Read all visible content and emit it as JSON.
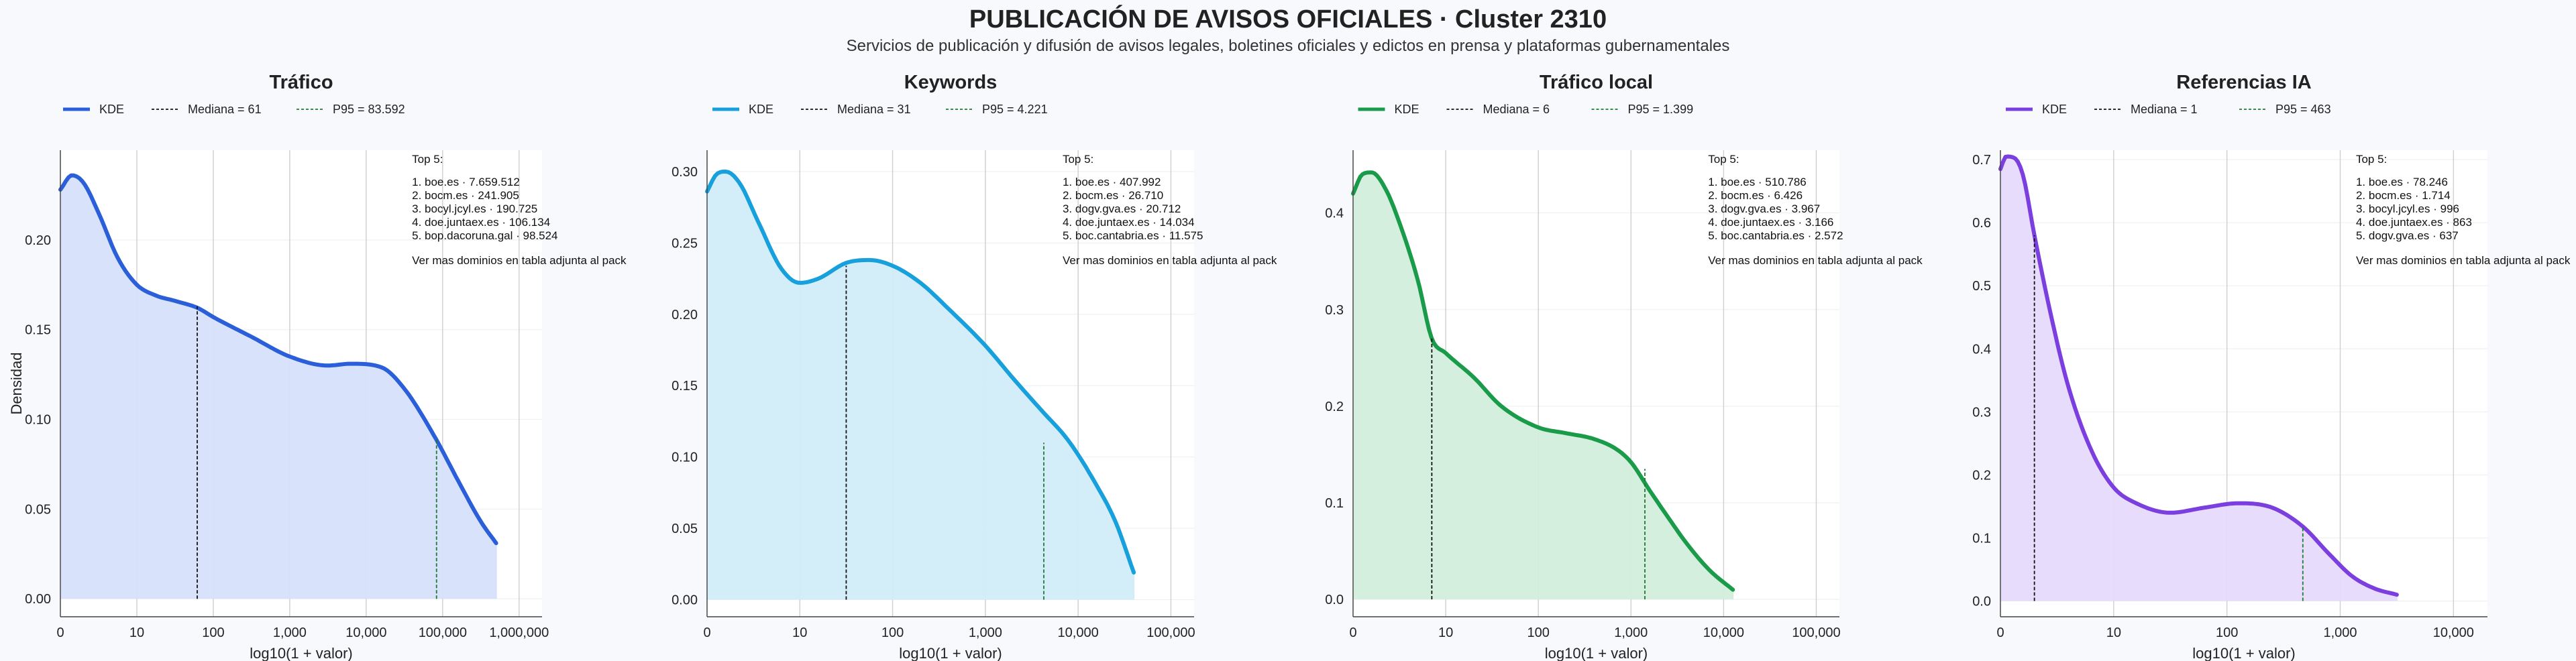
{
  "title": "PUBLICACIÓN DE AVISOS OFICIALES · Cluster 2310",
  "subtitle": "Servicios de publicación y difusión de avisos legales, boletines oficiales y edictos en prensa y plataformas gubernamentales",
  "colors": {
    "background": "#f7f9fc",
    "plot_bg": "#ffffff",
    "grid": "#cfcfcf"
  },
  "chart_data": [
    {
      "type": "area",
      "title": "Tráfico",
      "xlabel": "log10(1 + valor)",
      "ylabel": "Densidad",
      "x_scale": "log10(1+x)",
      "xlim": [
        0,
        6.3
      ],
      "ylim": [
        -0.01,
        0.25
      ],
      "xticks": [
        0,
        1,
        2,
        3,
        4,
        5,
        6
      ],
      "xtick_labels": [
        "0",
        "10",
        "100",
        "1,000",
        "10,000",
        "100,000",
        "1,000,000"
      ],
      "yticks": [
        0,
        0.05,
        0.1,
        0.15,
        0.2
      ],
      "ytick_labels": [
        "0.00",
        "0.05",
        "0.10",
        "0.15",
        "0.20"
      ],
      "grid": true,
      "color": "#2b5fd9",
      "fill": "#d6e0fb",
      "legend": {
        "kde": "KDE",
        "median": "Mediana = 61",
        "p95": "P95 = 83.592"
      },
      "kde": {
        "x": [
          0,
          0.15,
          0.3,
          0.5,
          0.75,
          1.0,
          1.25,
          1.5,
          1.8,
          2.0,
          2.5,
          3.0,
          3.5,
          3.8,
          4.2,
          4.5,
          4.9,
          5.2,
          5.5,
          5.7
        ],
        "y": [
          0.228,
          0.236,
          0.232,
          0.215,
          0.19,
          0.175,
          0.169,
          0.166,
          0.162,
          0.157,
          0.146,
          0.135,
          0.13,
          0.131,
          0.129,
          0.117,
          0.09,
          0.066,
          0.043,
          0.031
        ]
      },
      "median_x": 1.79,
      "median_y": 0.163,
      "p95_x": 4.92,
      "p95_y": 0.089,
      "top5": [
        "Top 5:",
        "1. boe.es · 7.659.512",
        "2. bocm.es · 241.905",
        "3. bocyl.jcyl.es · 190.725",
        "4. doe.juntaex.es · 106.134",
        "5. bop.dacoruna.gal · 98.524"
      ],
      "note": "Ver mas dominios en tabla adjunta al pack"
    },
    {
      "type": "area",
      "title": "Keywords",
      "xlabel": "log10(1 + valor)",
      "x_scale": "log10(1+x)",
      "xlim": [
        0,
        5.25
      ],
      "ylim": [
        -0.012,
        0.315
      ],
      "xticks": [
        0,
        1,
        2,
        3,
        4,
        5
      ],
      "xtick_labels": [
        "0",
        "10",
        "100",
        "1,000",
        "10,000",
        "100,000"
      ],
      "yticks": [
        0,
        0.05,
        0.1,
        0.15,
        0.2,
        0.25,
        0.3
      ],
      "ytick_labels": [
        "0.00",
        "0.05",
        "0.10",
        "0.15",
        "0.20",
        "0.25",
        "0.30"
      ],
      "grid": true,
      "color": "#17a0dc",
      "fill": "#d1ecf9",
      "legend": {
        "kde": "KDE",
        "median": "Mediana = 31",
        "p95": "P95 = 4.221"
      },
      "kde": {
        "x": [
          0,
          0.1,
          0.2,
          0.35,
          0.55,
          0.8,
          1.0,
          1.2,
          1.5,
          1.75,
          2.0,
          2.3,
          2.6,
          3.0,
          3.3,
          3.6,
          3.9,
          4.2,
          4.4,
          4.6
        ],
        "y": [
          0.286,
          0.298,
          0.3,
          0.292,
          0.265,
          0.232,
          0.222,
          0.225,
          0.236,
          0.238,
          0.234,
          0.222,
          0.204,
          0.178,
          0.155,
          0.133,
          0.111,
          0.08,
          0.055,
          0.019
        ]
      },
      "median_x": 1.5,
      "median_y": 0.234,
      "p95_x": 3.63,
      "p95_y": 0.11,
      "top5": [
        "Top 5:",
        "1. boe.es · 407.992",
        "2. bocm.es · 26.710",
        "3. dogv.gva.es · 20.712",
        "4. doe.juntaex.es · 14.034",
        "5. boc.cantabria.es · 11.575"
      ],
      "note": "Ver mas dominios en tabla adjunta al pack"
    },
    {
      "type": "area",
      "title": "Tráfico local",
      "xlabel": "log10(1 + valor)",
      "x_scale": "log10(1+x)",
      "xlim": [
        0,
        5.25
      ],
      "ylim": [
        -0.018,
        0.465
      ],
      "xticks": [
        0,
        1,
        2,
        3,
        4,
        5
      ],
      "xtick_labels": [
        "0",
        "10",
        "100",
        "1,000",
        "10,000",
        "100,000"
      ],
      "yticks": [
        0,
        0.1,
        0.2,
        0.3,
        0.4
      ],
      "ytick_labels": [
        "0.0",
        "0.1",
        "0.2",
        "0.3",
        "0.4"
      ],
      "grid": true,
      "color": "#1a9b4a",
      "fill": "#d2eedb",
      "legend": {
        "kde": "KDE",
        "median": "Mediana = 6",
        "p95": "P95 = 1.399"
      },
      "kde": {
        "x": [
          0,
          0.1,
          0.2,
          0.35,
          0.5,
          0.7,
          0.85,
          1.0,
          1.3,
          1.6,
          2.0,
          2.3,
          2.6,
          2.85,
          3.0,
          3.2,
          3.4,
          3.6,
          3.85,
          4.1
        ],
        "y": [
          0.42,
          0.44,
          0.442,
          0.425,
          0.39,
          0.33,
          0.27,
          0.255,
          0.23,
          0.2,
          0.178,
          0.172,
          0.166,
          0.155,
          0.142,
          0.113,
          0.085,
          0.058,
          0.03,
          0.01
        ]
      },
      "median_x": 0.85,
      "median_y": 0.27,
      "p95_x": 3.15,
      "p95_y": 0.135,
      "top5": [
        "Top 5:",
        "1. boe.es · 510.786",
        "2. bocm.es · 6.426",
        "3. dogv.gva.es · 3.967",
        "4. doe.juntaex.es · 3.166",
        "5. boc.cantabria.es · 2.572"
      ],
      "note": "Ver mas dominios en tabla adjunta al pack"
    },
    {
      "type": "area",
      "title": "Referencias IA",
      "xlabel": "log10(1 + valor)",
      "x_scale": "log10(1+x)",
      "xlim": [
        0,
        4.3
      ],
      "ylim": [
        -0.025,
        0.715
      ],
      "xticks": [
        0,
        1,
        2,
        3,
        4
      ],
      "xtick_labels": [
        "0",
        "10",
        "100",
        "1,000",
        "10,000"
      ],
      "yticks": [
        0,
        0.1,
        0.2,
        0.3,
        0.4,
        0.5,
        0.6,
        0.7
      ],
      "ytick_labels": [
        "0.0",
        "0.1",
        "0.2",
        "0.3",
        "0.4",
        "0.5",
        "0.6",
        "0.7"
      ],
      "grid": true,
      "color": "#7b3fe0",
      "fill": "#e6dafb",
      "legend": {
        "kde": "KDE",
        "median": "Mediana = 1",
        "p95": "P95 = 463"
      },
      "kde": {
        "x": [
          0,
          0.05,
          0.12,
          0.2,
          0.3,
          0.45,
          0.6,
          0.8,
          1.0,
          1.2,
          1.5,
          1.8,
          2.1,
          2.4,
          2.67,
          2.9,
          3.1,
          3.3,
          3.5
        ],
        "y": [
          0.685,
          0.705,
          0.703,
          0.675,
          0.58,
          0.45,
          0.34,
          0.24,
          0.18,
          0.155,
          0.14,
          0.148,
          0.155,
          0.148,
          0.118,
          0.075,
          0.04,
          0.02,
          0.01
        ]
      },
      "median_x": 0.3,
      "median_y": 0.58,
      "p95_x": 2.67,
      "p95_y": 0.118,
      "top5": [
        "Top 5:",
        "1. boe.es · 78.246",
        "2. bocm.es · 1.714",
        "3. bocyl.jcyl.es · 996",
        "4. doe.juntaex.es · 863",
        "5. dogv.gva.es · 637"
      ],
      "note": "Ver mas dominios en tabla adjunta al pack"
    }
  ]
}
